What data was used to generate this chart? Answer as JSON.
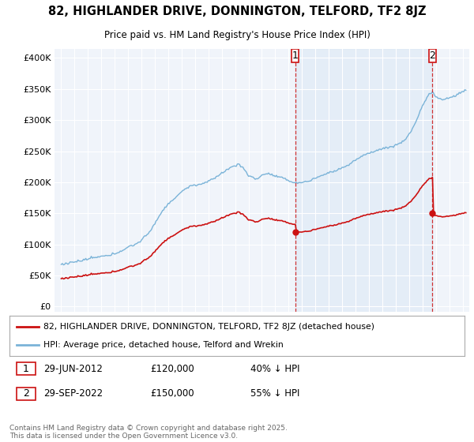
{
  "title": "82, HIGHLANDER DRIVE, DONNINGTON, TELFORD, TF2 8JZ",
  "subtitle": "Price paid vs. HM Land Registry's House Price Index (HPI)",
  "bg_color": "#ffffff",
  "plot_bg_color": "#f0f4fa",
  "hpi_color": "#7ab3d8",
  "hpi_fill_color": "#dce9f5",
  "price_color": "#cc1111",
  "marker1_date_x": 2012.5,
  "marker2_date_x": 2022.75,
  "sale1_price": 120000,
  "sale2_price": 150000,
  "legend_label1": "82, HIGHLANDER DRIVE, DONNINGTON, TELFORD, TF2 8JZ (detached house)",
  "legend_label2": "HPI: Average price, detached house, Telford and Wrekin",
  "footer": "Contains HM Land Registry data © Crown copyright and database right 2025.\nThis data is licensed under the Open Government Licence v3.0.",
  "ylabel_values": [
    0,
    50000,
    100000,
    150000,
    200000,
    250000,
    300000,
    350000,
    400000
  ],
  "ylabel_labels": [
    "£0",
    "£50K",
    "£100K",
    "£150K",
    "£200K",
    "£250K",
    "£300K",
    "£350K",
    "£400K"
  ],
  "xmin": 1994.5,
  "xmax": 2025.5,
  "ymin": -8000,
  "ymax": 415000,
  "sale1_label": "29-JUN-2012",
  "sale2_label": "29-SEP-2022",
  "sale1_pct": "40% ↓ HPI",
  "sale2_pct": "55% ↓ HPI"
}
